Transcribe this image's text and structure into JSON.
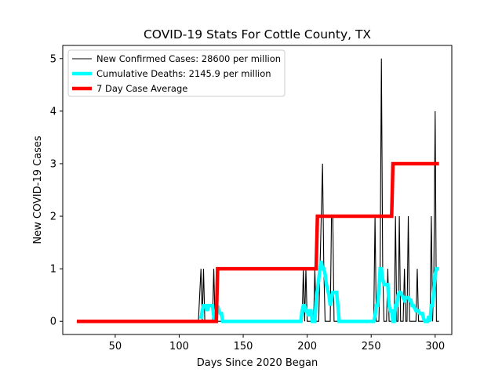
{
  "chart_data": {
    "type": "line",
    "title": "COVID-19 Stats For Cottle County, TX",
    "xlabel": "Days Since 2020 Began",
    "ylabel": "New COVID-19 Cases",
    "xlim": [
      9,
      313
    ],
    "ylim": [
      -0.25,
      5.25
    ],
    "xticks": [
      50,
      100,
      150,
      200,
      250,
      300
    ],
    "yticks": [
      0,
      1,
      2,
      3,
      4,
      5
    ],
    "grid": false,
    "legend": {
      "placement": "top-left"
    },
    "series": [
      {
        "name": "New Confirmed Cases: 28600 per million",
        "color": "#000000",
        "points": [
          [
            20,
            0
          ],
          [
            115,
            0
          ],
          [
            117,
            1
          ],
          [
            118,
            0
          ],
          [
            119,
            1
          ],
          [
            120,
            0
          ],
          [
            126,
            0
          ],
          [
            127,
            1
          ],
          [
            128,
            0
          ],
          [
            196,
            0
          ],
          [
            197,
            1
          ],
          [
            198,
            0
          ],
          [
            199,
            1
          ],
          [
            200,
            0
          ],
          [
            205,
            0
          ],
          [
            206,
            1
          ],
          [
            207,
            0
          ],
          [
            209,
            0
          ],
          [
            210,
            1
          ],
          [
            211,
            2
          ],
          [
            212,
            3
          ],
          [
            213,
            1
          ],
          [
            214,
            0
          ],
          [
            218,
            0
          ],
          [
            219,
            2
          ],
          [
            220,
            2
          ],
          [
            221,
            0
          ],
          [
            252,
            0
          ],
          [
            253,
            2
          ],
          [
            254,
            0
          ],
          [
            256,
            0
          ],
          [
            257,
            1
          ],
          [
            258,
            5
          ],
          [
            259,
            1
          ],
          [
            260,
            0
          ],
          [
            262,
            0
          ],
          [
            263,
            1
          ],
          [
            264,
            0
          ],
          [
            268,
            0
          ],
          [
            269,
            2
          ],
          [
            270,
            0
          ],
          [
            271,
            0
          ],
          [
            272,
            2
          ],
          [
            273,
            0
          ],
          [
            275,
            0
          ],
          [
            276,
            1
          ],
          [
            277,
            0
          ],
          [
            278,
            0
          ],
          [
            279,
            2
          ],
          [
            280,
            0
          ],
          [
            285,
            0
          ],
          [
            286,
            1
          ],
          [
            287,
            0
          ],
          [
            296,
            0
          ],
          [
            297,
            2
          ],
          [
            298,
            0
          ],
          [
            299,
            1
          ],
          [
            300,
            4
          ],
          [
            301,
            0
          ],
          [
            303,
            0
          ]
        ]
      },
      {
        "name": "Cumulative Deaths: 2145.9 per million",
        "color": "#00ffff",
        "points": [
          [
            117,
            0.05
          ],
          [
            118,
            0.2
          ],
          [
            119,
            0.3
          ],
          [
            121,
            0.3
          ],
          [
            122,
            0.2
          ],
          [
            123,
            0.3
          ],
          [
            126,
            0.3
          ],
          [
            127,
            0.1
          ],
          [
            129,
            0.2
          ],
          [
            130,
            0.3
          ],
          [
            131,
            0.2
          ],
          [
            132,
            0.15
          ],
          [
            133,
            0.15
          ],
          [
            134,
            0
          ],
          [
            135,
            0
          ],
          [
            195,
            0
          ],
          [
            196,
            0.2
          ],
          [
            197,
            0.3
          ],
          [
            198,
            0.3
          ],
          [
            199,
            0.2
          ],
          [
            200,
            0.2
          ],
          [
            201,
            0.1
          ],
          [
            202,
            0.2
          ],
          [
            203,
            0.2
          ],
          [
            204,
            0
          ],
          [
            206,
            0
          ],
          [
            207,
            0.4
          ],
          [
            208,
            0.6
          ],
          [
            209,
            0.8
          ],
          [
            210,
            1.0
          ],
          [
            211,
            1.15
          ],
          [
            212,
            1.0
          ],
          [
            213,
            1.0
          ],
          [
            214,
            0.9
          ],
          [
            215,
            0.7
          ],
          [
            216,
            0.6
          ],
          [
            217,
            0.5
          ],
          [
            218,
            0.3
          ],
          [
            219,
            0.4
          ],
          [
            220,
            0.55
          ],
          [
            221,
            0.55
          ],
          [
            222,
            0.55
          ],
          [
            223,
            0.55
          ],
          [
            224,
            0.3
          ],
          [
            225,
            0
          ],
          [
            252,
            0
          ],
          [
            253,
            0.1
          ],
          [
            254,
            0.3
          ],
          [
            255,
            0.3
          ],
          [
            256,
            0.6
          ],
          [
            257,
            1.0
          ],
          [
            258,
            1.0
          ],
          [
            259,
            0.8
          ],
          [
            260,
            0.7
          ],
          [
            261,
            0.7
          ],
          [
            262,
            0.7
          ],
          [
            263,
            0.7
          ],
          [
            264,
            0.3
          ],
          [
            265,
            0.2
          ],
          [
            266,
            0.2
          ],
          [
            267,
            0
          ],
          [
            268,
            0
          ],
          [
            269,
            0.3
          ],
          [
            270,
            0.3
          ],
          [
            271,
            0.5
          ],
          [
            272,
            0.55
          ],
          [
            273,
            0.55
          ],
          [
            274,
            0.5
          ],
          [
            275,
            0.45
          ],
          [
            276,
            0.4
          ],
          [
            277,
            0.45
          ],
          [
            278,
            0.45
          ],
          [
            279,
            0.45
          ],
          [
            280,
            0.4
          ],
          [
            281,
            0.4
          ],
          [
            282,
            0.3
          ],
          [
            283,
            0.3
          ],
          [
            284,
            0.25
          ],
          [
            285,
            0.2
          ],
          [
            286,
            0.2
          ],
          [
            287,
            0.2
          ],
          [
            288,
            0.15
          ],
          [
            290,
            0.15
          ],
          [
            291,
            0.05
          ],
          [
            292,
            0
          ],
          [
            294,
            0
          ],
          [
            295,
            0.1
          ],
          [
            296,
            0
          ],
          [
            297,
            0.3
          ],
          [
            298,
            0.3
          ],
          [
            299,
            0.6
          ],
          [
            300,
            0.9
          ],
          [
            301,
            1.0
          ],
          [
            302,
            1.0
          ],
          [
            303,
            1.0
          ]
        ]
      },
      {
        "name": "7 Day Case Average",
        "color": "#ff0000",
        "points": [
          [
            20,
            0
          ],
          [
            129,
            0
          ],
          [
            130,
            1
          ],
          [
            207,
            1
          ],
          [
            208,
            2
          ],
          [
            266,
            2
          ],
          [
            267,
            3
          ],
          [
            303,
            3
          ]
        ]
      }
    ]
  }
}
